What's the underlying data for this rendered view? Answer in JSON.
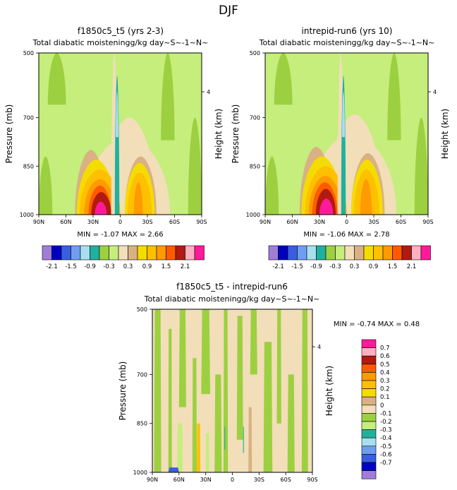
{
  "figure": {
    "title": "DJF",
    "colors": {
      "-2.1": "#a07ed6",
      "-1.8": "#0000c0",
      "-1.5": "#3a5ee0",
      "-1.2": "#6f9ef0",
      "-0.9": "#a8dff0",
      "-0.6": "#20b0a0",
      "-0.3": "#9cd040",
      "0.0": "#c5ee7c",
      "0.3": "#f2deb8",
      "0.6": "#d9b184",
      "0.9": "#f5dc00",
      "1.2": "#ffc000",
      "1.5": "#ff9a00",
      "1.8": "#ff5a00",
      "2.1": "#b01a10",
      "2.4": "#ffb0c0",
      "2.7": "#ff1a9a"
    }
  },
  "chart_data": [
    {
      "type": "heatmap",
      "panel_title": "f1850c5_t5 (yrs 2-3)",
      "title": "Total diabatic moistening",
      "units": "g/kg day~S~-1~N~",
      "xlabel": "",
      "ylabel": "Pressure (mb)",
      "right_label": "Height (km)",
      "x_ticks": [
        "90N",
        "60N",
        "30N",
        "0",
        "30S",
        "60S",
        "90S"
      ],
      "x_values": [
        90,
        60,
        30,
        0,
        -30,
        -60,
        -90
      ],
      "y_ticks": [
        "500",
        "700",
        "850",
        "1000"
      ],
      "y_values": [
        500,
        700,
        850,
        1000
      ],
      "y_lim": [
        500,
        1000
      ],
      "right_ticks": [
        "4"
      ],
      "min_label": "MIN = ",
      "min_value": "-1.07",
      "max_label": "MAX = ",
      "max_value": "2.66",
      "fields": {
        "background": "0.0",
        "shapes": [
          {
            "lat": [
              -45,
              -60
            ],
            "p": [
              500,
              770
            ],
            "level": "-0.3"
          },
          {
            "lat": [
              60,
              80
            ],
            "p": [
              500,
              660
            ],
            "level": "-0.3"
          },
          {
            "lat": [
              75,
              90
            ],
            "p": [
              820,
              1000
            ],
            "level": "-0.3"
          },
          {
            "lat": [
              -75,
              -90
            ],
            "p": [
              700,
              1000
            ],
            "level": "-0.3"
          },
          {
            "lat": [
              20,
              -40
            ],
            "p": [
              700,
              1000
            ],
            "level": "0.3"
          },
          {
            "lat": [
              40,
              -55
            ],
            "p": [
              760,
              1000
            ],
            "level": "0.3"
          },
          {
            "lat": [
              50,
              15
            ],
            "p": [
              800,
              1000
            ],
            "level": "0.6"
          },
          {
            "lat": [
              48,
              5
            ],
            "p": [
              830,
              1000
            ],
            "level": "0.9"
          },
          {
            "lat": [
              45,
              0
            ],
            "p": [
              860,
              1000
            ],
            "level": "1.2"
          },
          {
            "lat": [
              40,
              5
            ],
            "p": [
              890,
              1000
            ],
            "level": "1.5"
          },
          {
            "lat": [
              35,
              10
            ],
            "p": [
              910,
              1000
            ],
            "level": "1.8"
          },
          {
            "lat": [
              32,
              10
            ],
            "p": [
              930,
              1000
            ],
            "level": "2.1"
          },
          {
            "lat": [
              28,
              15
            ],
            "p": [
              960,
              1000
            ],
            "level": "2.7"
          },
          {
            "lat": [
              -5,
              -40
            ],
            "p": [
              820,
              1000
            ],
            "level": "0.6"
          },
          {
            "lat": [
              -5,
              -38
            ],
            "p": [
              840,
              1000
            ],
            "level": "0.9"
          },
          {
            "lat": [
              -8,
              -35
            ],
            "p": [
              870,
              1000
            ],
            "level": "1.2"
          },
          {
            "lat": [
              -15,
              -25
            ],
            "p": [
              900,
              1000
            ],
            "level": "1.5"
          },
          {
            "lat": [
              10,
              3
            ],
            "p": [
              500,
              1000
            ],
            "level": "0.3"
          },
          {
            "lat": [
              6,
              1
            ],
            "p": [
              570,
              1000
            ],
            "level": "-0.6"
          },
          {
            "lat": [
              5,
              2
            ],
            "p": [
              620,
              760
            ],
            "level": "-0.9"
          }
        ]
      }
    },
    {
      "type": "heatmap",
      "panel_title": "intrepid-run6 (yrs 10)",
      "title": "Total diabatic moistening",
      "units": "g/kg day~S~-1~N~",
      "xlabel": "",
      "ylabel": "Pressure (mb)",
      "right_label": "Height (km)",
      "x_ticks": [
        "90N",
        "60N",
        "30N",
        "0",
        "30S",
        "60S",
        "90S"
      ],
      "x_values": [
        90,
        60,
        30,
        0,
        -30,
        -60,
        -90
      ],
      "y_ticks": [
        "500",
        "700",
        "850",
        "1000"
      ],
      "y_values": [
        500,
        700,
        850,
        1000
      ],
      "y_lim": [
        500,
        1000
      ],
      "right_ticks": [
        "4"
      ],
      "min_label": "MIN = ",
      "min_value": "-1.06",
      "max_label": "MAX = ",
      "max_value": "2.78",
      "fields": {
        "background": "0.0",
        "shapes": [
          {
            "lat": [
              -45,
              -60
            ],
            "p": [
              500,
              770
            ],
            "level": "-0.3"
          },
          {
            "lat": [
              60,
              80
            ],
            "p": [
              500,
              660
            ],
            "level": "-0.3"
          },
          {
            "lat": [
              75,
              90
            ],
            "p": [
              820,
              1000
            ],
            "level": "-0.3"
          },
          {
            "lat": [
              -75,
              -90
            ],
            "p": [
              700,
              1000
            ],
            "level": "-0.3"
          },
          {
            "lat": [
              22,
              -40
            ],
            "p": [
              690,
              1000
            ],
            "level": "0.3"
          },
          {
            "lat": [
              42,
              -55
            ],
            "p": [
              750,
              1000
            ],
            "level": "0.3"
          },
          {
            "lat": [
              52,
              15
            ],
            "p": [
              790,
              1000
            ],
            "level": "0.6"
          },
          {
            "lat": [
              50,
              5
            ],
            "p": [
              820,
              1000
            ],
            "level": "0.9"
          },
          {
            "lat": [
              46,
              0
            ],
            "p": [
              850,
              1000
            ],
            "level": "1.2"
          },
          {
            "lat": [
              42,
              5
            ],
            "p": [
              880,
              1000
            ],
            "level": "1.5"
          },
          {
            "lat": [
              38,
              10
            ],
            "p": [
              900,
              1000
            ],
            "level": "1.8"
          },
          {
            "lat": [
              34,
              12
            ],
            "p": [
              920,
              1000
            ],
            "level": "2.1"
          },
          {
            "lat": [
              30,
              15
            ],
            "p": [
              950,
              1000
            ],
            "level": "2.7"
          },
          {
            "lat": [
              -5,
              -42
            ],
            "p": [
              810,
              1000
            ],
            "level": "0.6"
          },
          {
            "lat": [
              -5,
              -40
            ],
            "p": [
              830,
              1000
            ],
            "level": "0.9"
          },
          {
            "lat": [
              -8,
              -36
            ],
            "p": [
              860,
              1000
            ],
            "level": "1.2"
          },
          {
            "lat": [
              -15,
              -28
            ],
            "p": [
              890,
              1000
            ],
            "level": "1.5"
          },
          {
            "lat": [
              10,
              3
            ],
            "p": [
              500,
              1000
            ],
            "level": "0.3"
          },
          {
            "lat": [
              6,
              1
            ],
            "p": [
              570,
              1000
            ],
            "level": "-0.6"
          },
          {
            "lat": [
              5,
              2
            ],
            "p": [
              620,
              760
            ],
            "level": "-0.9"
          }
        ]
      }
    },
    {
      "type": "heatmap",
      "panel_title": "f1850c5_t5 - intrepid-run6",
      "title": "Total diabatic moistening",
      "units": "g/kg day~S~-1~N~",
      "xlabel": "",
      "ylabel": "Pressure (mb)",
      "right_label": "Height (km)",
      "x_ticks": [
        "90N",
        "60N",
        "30N",
        "0",
        "30S",
        "60S",
        "90S"
      ],
      "x_values": [
        90,
        60,
        30,
        0,
        -30,
        -60,
        -90
      ],
      "y_ticks": [
        "500",
        "700",
        "850",
        "1000"
      ],
      "y_values": [
        500,
        700,
        850,
        1000
      ],
      "y_lim": [
        500,
        1000
      ],
      "right_ticks": [
        "4"
      ],
      "min_label": "MIN = ",
      "min_value": "-0.74",
      "max_label": "MAX = ",
      "max_value": "0.48",
      "fields": {
        "background": "0",
        "stripes": [
          {
            "lat": [
              88,
              80
            ],
            "p": [
              500,
              1000
            ],
            "level": "-0.1"
          },
          {
            "lat": [
              72,
              68
            ],
            "p": [
              560,
              1000
            ],
            "level": "-0.1"
          },
          {
            "lat": [
              60,
              52
            ],
            "p": [
              500,
              800
            ],
            "level": "-0.1"
          },
          {
            "lat": [
              45,
              40
            ],
            "p": [
              650,
              1000
            ],
            "level": "-0.1"
          },
          {
            "lat": [
              35,
              25
            ],
            "p": [
              500,
              760
            ],
            "level": "-0.1"
          },
          {
            "lat": [
              20,
              12
            ],
            "p": [
              700,
              1000
            ],
            "level": "-0.1"
          },
          {
            "lat": [
              10,
              5
            ],
            "p": [
              500,
              1000
            ],
            "level": "-0.1"
          },
          {
            "lat": [
              -5,
              -12
            ],
            "p": [
              520,
              900
            ],
            "level": "-0.1"
          },
          {
            "lat": [
              -20,
              -28
            ],
            "p": [
              500,
              700
            ],
            "level": "-0.1"
          },
          {
            "lat": [
              -35,
              -45
            ],
            "p": [
              600,
              1000
            ],
            "level": "-0.1"
          },
          {
            "lat": [
              -50,
              -55
            ],
            "p": [
              500,
              850
            ],
            "level": "-0.1"
          },
          {
            "lat": [
              -62,
              -70
            ],
            "p": [
              700,
              1000
            ],
            "level": "-0.1"
          },
          {
            "lat": [
              -78,
              -85
            ],
            "p": [
              500,
              1000
            ],
            "level": "-0.1"
          },
          {
            "lat": [
              62,
              56
            ],
            "p": [
              850,
              1000
            ],
            "level": "-0.2"
          },
          {
            "lat": [
              30,
              26
            ],
            "p": [
              880,
              1000
            ],
            "level": "-0.2"
          },
          {
            "lat": [
              9,
              8
            ],
            "p": [
              860,
              930
            ],
            "level": "-0.3"
          },
          {
            "lat": [
              -12,
              -13
            ],
            "p": [
              860,
              940
            ],
            "level": "-0.3"
          },
          {
            "lat": [
              72,
              60
            ],
            "p": [
              985,
              1000
            ],
            "level": "-0.5"
          },
          {
            "lat": [
              -18,
              -22
            ],
            "p": [
              800,
              1000
            ],
            "level": "0.1"
          },
          {
            "lat": [
              40,
              36
            ],
            "p": [
              850,
              1000
            ],
            "level": "0.2"
          }
        ]
      },
      "colorbar": {
        "labels": [
          "0.7",
          "0.6",
          "0.5",
          "0.4",
          "0.3",
          "0.2",
          "0.1",
          "0",
          "-0.1",
          "-0.2",
          "-0.3",
          "-0.4",
          "-0.5",
          "-0.6",
          "-0.7"
        ],
        "colors": [
          "#ff1a9a",
          "#ffb0c0",
          "#b01a10",
          "#ff5a00",
          "#ff9a00",
          "#ffc000",
          "#f5dc00",
          "#d9b184",
          "#f2deb8",
          "#9cd040",
          "#c5ee7c",
          "#20b0a0",
          "#a8dff0",
          "#6f9ef0",
          "#3a5ee0",
          "#0000c0",
          "#a07ed6"
        ]
      }
    }
  ],
  "colorbars": {
    "shared_labels": [
      "-2.1",
      "-1.5",
      "-0.9",
      "-0.3",
      "0.3",
      "0.9",
      "1.5",
      "2.1"
    ],
    "shared_colors": [
      "#a07ed6",
      "#0000c0",
      "#3a5ee0",
      "#6f9ef0",
      "#a8dff0",
      "#20b0a0",
      "#9cd040",
      "#c5ee7c",
      "#f2deb8",
      "#d9b184",
      "#f5dc00",
      "#ffc000",
      "#ff9a00",
      "#ff5a00",
      "#b01a10",
      "#ffb0c0",
      "#ff1a9a"
    ]
  }
}
